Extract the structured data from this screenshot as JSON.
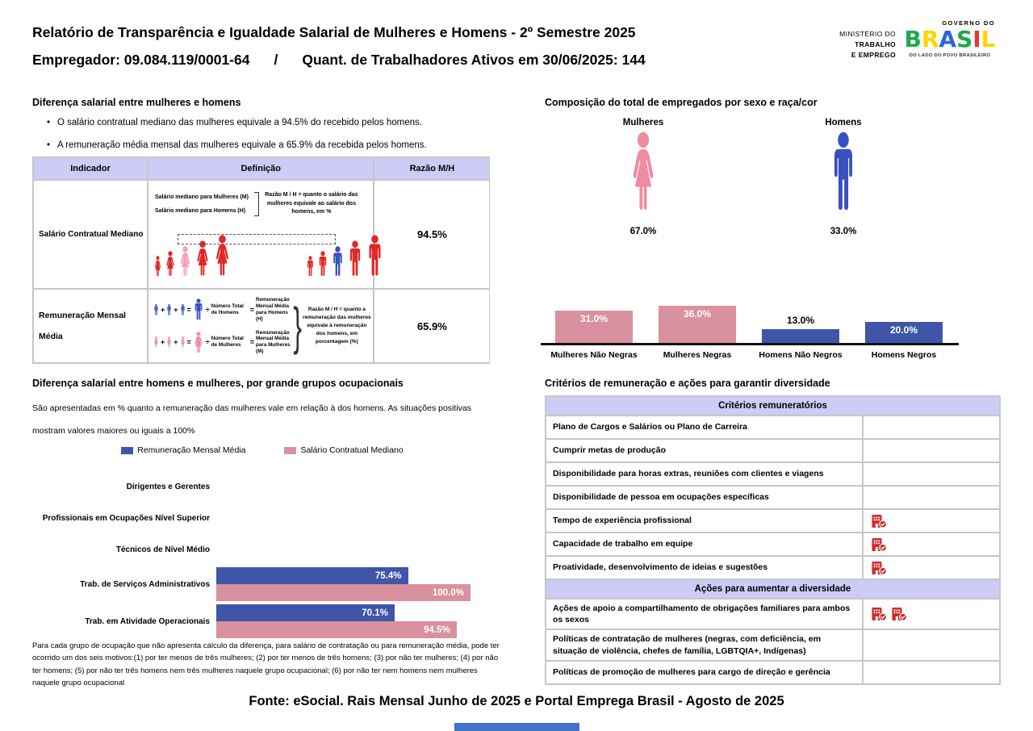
{
  "header": {
    "title": "Relatório de Transparência e Igualdade Salarial de Mulheres e Homens - 2º Semestre 2025",
    "employer": "Empregador: 09.084.119/0001-64",
    "separator": "/",
    "active_workers": "Quant. de Trabalhadores Ativos em 30/06/2025: 144",
    "ministry_lines": [
      "MINISTÉRIO DO",
      "TRABALHO",
      "E EMPREGO"
    ],
    "gov_logo": {
      "top": "GOVERNO DO",
      "brand": "BRASIL",
      "bottom": "DO LADO DO POVO BRASILEIRO"
    }
  },
  "salary_gap": {
    "title": "Diferença salarial entre mulheres e homens",
    "bullets": [
      "O salário contratual mediano das mulheres equivale a 94.5% do recebido pelos homens.",
      "A remuneração média mensal das mulheres equivale a 65.9% da recebida pelos homens."
    ],
    "table": {
      "headers": [
        "Indicador",
        "Definição",
        "Razão M/H"
      ],
      "rows": [
        {
          "indicator": "Salário Contratual Mediano",
          "definition": {
            "line1": "Salário mediano para Mulheres (M)",
            "line2": "Salário mediano para Homens (H)",
            "note": "Razão M / H = quanto o salário das mulheres equivale ao salário dos homens, em %"
          },
          "ratio": "94.5%"
        },
        {
          "indicator": "Remuneração Mensal Média",
          "definition": {
            "men_divisor": "Número Total de Homens",
            "men_result": "Remuneração Mensal Média para Homens (H)",
            "women_divisor": "Número Total de Mulheres",
            "women_result": "Remuneração Mensal Média para Mulheres (M)",
            "note": "Razão M / H = quanto a remuneração das mulheres equivale à remuneração dos homens, em porcentagem (%)"
          },
          "ratio": "65.9%"
        }
      ]
    }
  },
  "composition": {
    "title": "Composição do total de empregados por sexo e raça/cor",
    "women_label": "Mulheres",
    "women_pct": "67.0%",
    "men_label": "Homens",
    "men_pct": "33.0%"
  },
  "occupational": {
    "title": "Diferença salarial entre homens e mulheres, por grande grupos ocupacionais",
    "subtitle": "São apresentadas em % quanto a remuneração das mulheres vale em relação à dos homens. As situações positivas mostram valores maiores ou iguais a 100%",
    "footnote": "Para cada grupo de ocupação que não apresenta cálculo da diferença, para salário de contratação ou para remuneração média, pode ter ocorrido um dos seis motivos:(1) por ter menos de três mulheres; (2) por ter menos de três homens; (3) por não ter mulheres; (4) por não ter homens; (5) por não ter três homens nem três mulheres naquele grupo ocupacional; (6) por não ter nem homens nem mulheres naquele grupo ocupacional"
  },
  "criteria": {
    "title": "Critérios de remuneração e ações para garantir diversidade",
    "section1_header": "Critérios remuneratórios",
    "section1_rows": [
      {
        "label": "Plano de Cargos e Salários ou Plano de Carreira",
        "icons": 0
      },
      {
        "label": "Cumprir metas de produção",
        "icons": 0
      },
      {
        "label": "Disponibilidade para horas extras, reuniões com clientes e viagens",
        "icons": 0
      },
      {
        "label": "Disponibilidade de pessoa em ocupações específicas",
        "icons": 0
      },
      {
        "label": "Tempo de experiência profissional",
        "icons": 1
      },
      {
        "label": "Capacidade de trabalho em equipe",
        "icons": 1
      },
      {
        "label": "Proatividade, desenvolvimento de ideias e sugestões",
        "icons": 1
      }
    ],
    "section2_header": "Ações para aumentar a diversidade",
    "section2_rows": [
      {
        "label": "Ações de apoio a compartilhamento de obrigações familiares para ambos os sexos",
        "icons": 2
      },
      {
        "label": "Políticas de contratação de mulheres (negras, com deficiência, em situação de violência, chefes de família, LGBTQIA+, Indígenas)",
        "icons": 0
      },
      {
        "label": "Políticas de promoção de mulheres para cargo de direção e gerência",
        "icons": 0
      }
    ]
  },
  "footer": {
    "source": "Fonte: eSocial. Rais Mensal Junho de 2025 e Portal Emprega Brasil - Agosto de 2025"
  },
  "colors": {
    "lavender_header": "#CCCCF7",
    "women_icon_pink": "#EF8CA0",
    "women_bar_pink": "#D9909F",
    "men_icon_blue": "#3A50BF",
    "men_bar_blue": "#3F55A8",
    "figure_red": "#E12826",
    "highlight_pink": "#F2A3B6",
    "building_icon_red": "#CE2B2B",
    "table_border_gray": "#C6C6C6",
    "scrollbar_blue": "#4472C4"
  },
  "chart_data": [
    {
      "type": "bar",
      "title": "Composição do total de empregados por sexo e raça/cor",
      "categories": [
        "Mulheres Não Negras",
        "Mulheres Negras",
        "Homens Não Negros",
        "Homens Negros"
      ],
      "values": [
        31.0,
        36.0,
        13.0,
        20.0
      ],
      "unit": "%",
      "colors": [
        "#D9909F",
        "#D9909F",
        "#3F55A8",
        "#3F55A8"
      ],
      "summary": {
        "Mulheres": 67.0,
        "Homens": 33.0
      },
      "ylim": [
        0,
        40
      ],
      "grid": false
    },
    {
      "type": "bar",
      "orientation": "horizontal",
      "title": "Diferença salarial entre homens e mulheres, por grande grupos ocupacionais",
      "categories": [
        "Dirigentes e Gerentes",
        "Profissionais em Ocupações Nível Superior",
        "Técnicos de Nível Médio",
        "Trab. de Serviços Administrativos",
        "Trab. em Atividade Operacionais"
      ],
      "series": [
        {
          "name": "Remuneração Mensal Média",
          "color": "#3F55A8",
          "values": [
            null,
            null,
            null,
            75.4,
            70.1
          ]
        },
        {
          "name": "Salário Contratual Mediano",
          "color": "#D9909F",
          "values": [
            null,
            null,
            null,
            100.0,
            94.5
          ]
        }
      ],
      "unit": "%",
      "xlim": [
        0,
        100
      ],
      "legend_position": "top",
      "grid": false
    }
  ]
}
